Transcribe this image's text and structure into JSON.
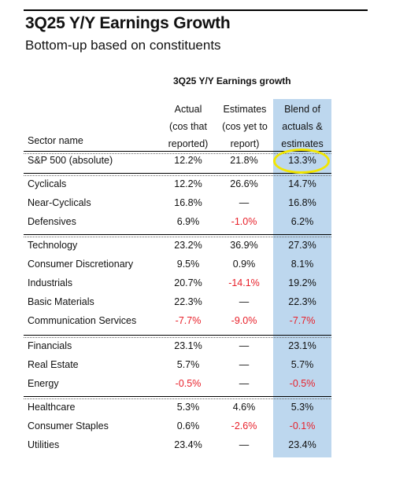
{
  "title": "3Q25 Y/Y Earnings Growth",
  "subtitle": "Bottom-up based on constituents",
  "table_header": "3Q25 Y/Y Earnings growth",
  "columns": {
    "sector": "Sector name",
    "actual": [
      "Actual",
      "(cos that",
      "reported)"
    ],
    "estimates": [
      "Estimates",
      "(cos yet to",
      "report)"
    ],
    "blend": [
      "Blend of",
      "actuals &",
      "estimates"
    ]
  },
  "colors": {
    "blend_background": "#bdd7ee",
    "negative": "#e8202a",
    "highlight": "#f2e600"
  },
  "rows": [
    {
      "name": "S&P 500 (absolute)",
      "actual": "12.2%",
      "estimates": "21.8%",
      "blend": "13.3%"
    },
    {
      "name": "Cyclicals",
      "actual": "12.2%",
      "estimates": "26.6%",
      "blend": "14.7%"
    },
    {
      "name": "Near-Cyclicals",
      "actual": "16.8%",
      "estimates": "—",
      "blend": "16.8%"
    },
    {
      "name": "Defensives",
      "actual": "6.9%",
      "estimates": "-1.0%",
      "blend": "6.2%"
    },
    {
      "name": "Technology",
      "actual": "23.2%",
      "estimates": "36.9%",
      "blend": "27.3%"
    },
    {
      "name": "Consumer Discretionary",
      "actual": "9.5%",
      "estimates": "0.9%",
      "blend": "8.1%"
    },
    {
      "name": "Industrials",
      "actual": "20.7%",
      "estimates": "-14.1%",
      "blend": "19.2%"
    },
    {
      "name": "Basic Materials",
      "actual": "22.3%",
      "estimates": "—",
      "blend": "22.3%"
    },
    {
      "name": "Communication Services",
      "actual": "-7.7%",
      "estimates": "-9.0%",
      "blend": "-7.7%"
    },
    {
      "name": "Financials",
      "actual": "23.1%",
      "estimates": "—",
      "blend": "23.1%"
    },
    {
      "name": "Real Estate",
      "actual": "5.7%",
      "estimates": "—",
      "blend": "5.7%"
    },
    {
      "name": "Energy",
      "actual": "-0.5%",
      "estimates": "—",
      "blend": "-0.5%"
    },
    {
      "name": "Healthcare",
      "actual": "5.3%",
      "estimates": "4.6%",
      "blend": "5.3%"
    },
    {
      "name": "Consumer Staples",
      "actual": "0.6%",
      "estimates": "-2.6%",
      "blend": "-0.1%"
    },
    {
      "name": "Utilities",
      "actual": "23.4%",
      "estimates": "—",
      "blend": "23.4%"
    }
  ]
}
